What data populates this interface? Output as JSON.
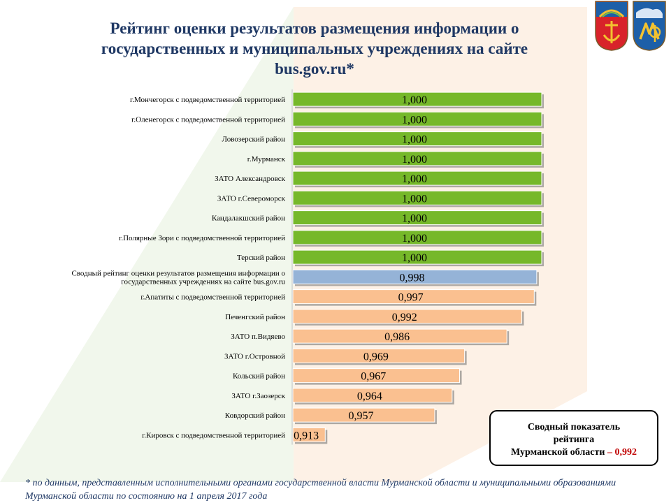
{
  "title": "Рейтинг оценки результатов  размещения  информации о государственных и муниципальных учреждениях на сайте bus.gov.ru*",
  "summary": {
    "line1": "Сводный показатель",
    "line2": "рейтинга",
    "line3": "Мурманской области",
    "dash": " – ",
    "value": "0,992"
  },
  "footnote": "* по данным, представленным исполнительными органами  государственной власти Мурманской  области  и муниципальными образованиями Мурманской  области по состоянию на 1 апреля 2017 года",
  "colors": {
    "green": "#76b82a",
    "blue": "#95b3d7",
    "peach": "#fac090",
    "title": "#1f3864",
    "accent": "#c00000"
  },
  "chart_data": {
    "type": "bar",
    "orientation": "horizontal",
    "xlim": [
      0.9,
      1.0
    ],
    "grid": false,
    "legend": "none",
    "categories": [
      "г.Мончегорск с подведомственной  территорией",
      "г.Оленегорск с подведомственной  территорией",
      "Ловозерский район",
      "г.Мурманск",
      "ЗАТО Александровск",
      "ЗАТО г.Североморск",
      "Кандалакшский  район",
      "г.Полярные Зори с подведомственной  территорией",
      "Терский район",
      "Сводный рейтинг оценки  результатов размещения информации  о государственных учреждениях на сайте  bus.gov.ru",
      "г.Апатиты с подведомственной  территорией",
      "Печенгский  район",
      "ЗАТО п.Видяево",
      "ЗАТО г.Островной",
      "Кольский район",
      "ЗАТО г.Заозерск",
      "Ковдорский район",
      "г.Кировск с подведомственной  территорией"
    ],
    "values": [
      1.0,
      1.0,
      1.0,
      1.0,
      1.0,
      1.0,
      1.0,
      1.0,
      1.0,
      0.998,
      0.997,
      0.992,
      0.986,
      0.969,
      0.967,
      0.964,
      0.957,
      0.913
    ],
    "labels": [
      "1,000",
      "1,000",
      "1,000",
      "1,000",
      "1,000",
      "1,000",
      "1,000",
      "1,000",
      "1,000",
      "0,998",
      "0,997",
      "0,992",
      "0,986",
      "0,969",
      "0,967",
      "0,964",
      "0,957",
      "0,913"
    ],
    "bar_color_groups": [
      "green",
      "green",
      "green",
      "green",
      "green",
      "green",
      "green",
      "green",
      "green",
      "blue",
      "peach",
      "peach",
      "peach",
      "peach",
      "peach",
      "peach",
      "peach",
      "peach"
    ]
  }
}
